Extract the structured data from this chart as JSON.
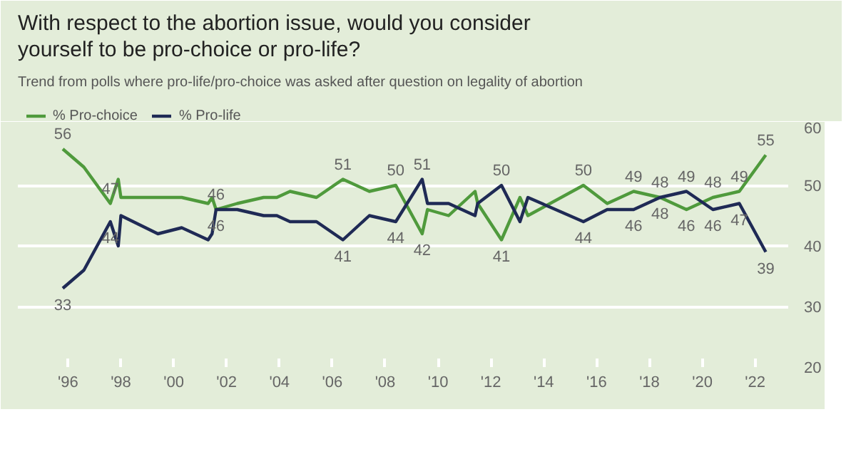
{
  "chart_data": {
    "type": "line",
    "title": "With respect to the abortion issue, would you consider yourself to be pro-choice or pro-life?",
    "subtitle": "Trend from polls where pro-life/pro-choice was asked after question on legality of abortion",
    "x": [
      1995.8,
      1996.6,
      1997.6,
      1997.9,
      1998.0,
      1999.4,
      2000.3,
      2001.3,
      2001.45,
      2001.6,
      2002.4,
      2003.4,
      2003.9,
      2004.4,
      2005.4,
      2006.4,
      2007.4,
      2008.4,
      2009.4,
      2009.6,
      2010.4,
      2011.4,
      2011.5,
      2012.4,
      2013.1,
      2013.4,
      2015.5,
      2016.4,
      2017.4,
      2018.4,
      2019.4,
      2020.4,
      2021.4,
      2022.4
    ],
    "series": [
      {
        "name": "% Pro-choice",
        "color": "#4f9a3c",
        "values": [
          56,
          53,
          47,
          51,
          48,
          48,
          48,
          47,
          48,
          46,
          47,
          48,
          48,
          49,
          48,
          51,
          49,
          50,
          42,
          46,
          45,
          49,
          47,
          41,
          48,
          45,
          50,
          47,
          49,
          48,
          46,
          48,
          49,
          55
        ],
        "value_labels": [
          "56",
          null,
          "47",
          null,
          null,
          null,
          null,
          null,
          null,
          "46",
          null,
          null,
          null,
          null,
          null,
          "51",
          null,
          "50",
          "42",
          null,
          null,
          null,
          null,
          "41",
          null,
          null,
          "50",
          null,
          "49",
          "48",
          "46",
          "48",
          "49",
          "55"
        ]
      },
      {
        "name": "% Pro-life",
        "color": "#1f2a55",
        "values": [
          33,
          36,
          44,
          40,
          45,
          42,
          43,
          41,
          42,
          46,
          46,
          45,
          45,
          44,
          44,
          41,
          45,
          44,
          51,
          47,
          47,
          45,
          47,
          50,
          44,
          48,
          44,
          46,
          46,
          48,
          49,
          46,
          47,
          39
        ],
        "value_labels": [
          "33",
          null,
          "44",
          null,
          null,
          null,
          null,
          null,
          null,
          "46",
          null,
          null,
          null,
          null,
          null,
          "41",
          null,
          "44",
          "51",
          null,
          null,
          null,
          null,
          "50",
          null,
          null,
          "44",
          null,
          "46",
          "48",
          "49",
          "46",
          "47",
          "39"
        ]
      }
    ],
    "xlim": [
      1994.1,
      2023.25
    ],
    "xticks": [
      {
        "value": 1996,
        "label": "'96"
      },
      {
        "value": 1998,
        "label": "'98"
      },
      {
        "value": 2000,
        "label": "'00"
      },
      {
        "value": 2002,
        "label": "'02"
      },
      {
        "value": 2004,
        "label": "'04"
      },
      {
        "value": 2006,
        "label": "'06"
      },
      {
        "value": 2008,
        "label": "'08"
      },
      {
        "value": 2010,
        "label": "'10"
      },
      {
        "value": 2012,
        "label": "'12"
      },
      {
        "value": 2014,
        "label": "'14"
      },
      {
        "value": 2016,
        "label": "'16"
      },
      {
        "value": 2018,
        "label": "'18"
      },
      {
        "value": 2020,
        "label": "'20"
      },
      {
        "value": 2022,
        "label": "'22"
      }
    ],
    "ylim": [
      20,
      60
    ],
    "yticks": [
      20,
      30,
      40,
      50,
      60
    ],
    "grid": "y",
    "legend": "top left",
    "marker": "none",
    "line_style": "solid"
  }
}
